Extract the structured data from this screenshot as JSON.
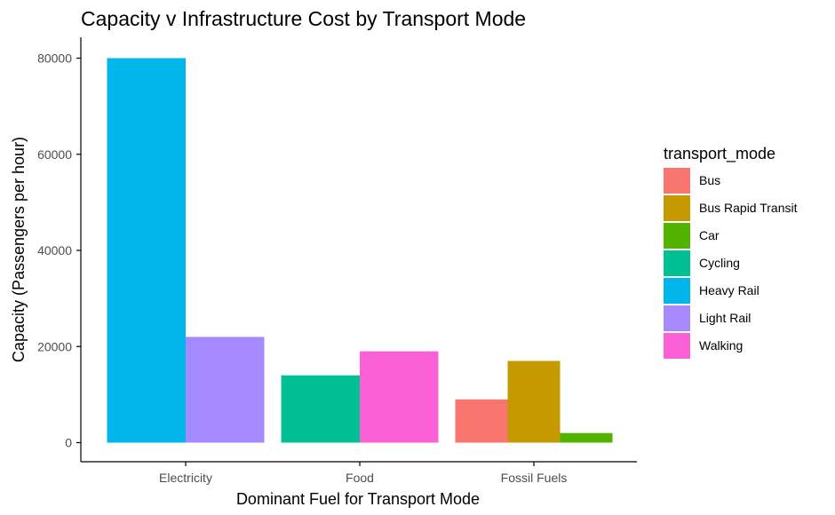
{
  "chart_data": {
    "type": "bar",
    "title": "Capacity v Infrastructure Cost by Transport Mode",
    "xlabel": "Dominant Fuel for Transport Mode",
    "ylabel": "Capacity (Passengers per hour)",
    "ylim": [
      0,
      80000
    ],
    "yticks": [
      "0",
      "20000",
      "40000",
      "60000",
      "80000"
    ],
    "grid": false,
    "categories": [
      "Electricity",
      "Food",
      "Fossil Fuels"
    ],
    "legend": {
      "title": "transport_mode",
      "placement": "right",
      "entries": [
        {
          "name": "Bus",
          "color": "#F8766D"
        },
        {
          "name": "Bus Rapid Transit",
          "color": "#C49A00"
        },
        {
          "name": "Car",
          "color": "#53B400"
        },
        {
          "name": "Cycling",
          "color": "#00C094"
        },
        {
          "name": "Heavy Rail",
          "color": "#00B6EB"
        },
        {
          "name": "Light Rail",
          "color": "#A58AFF"
        },
        {
          "name": "Walking",
          "color": "#FB61D7"
        }
      ]
    },
    "bars": [
      {
        "category": "Electricity",
        "mode": "Heavy Rail",
        "value": 80000
      },
      {
        "category": "Electricity",
        "mode": "Light Rail",
        "value": 22000
      },
      {
        "category": "Food",
        "mode": "Cycling",
        "value": 14000
      },
      {
        "category": "Food",
        "mode": "Walking",
        "value": 19000
      },
      {
        "category": "Fossil Fuels",
        "mode": "Bus",
        "value": 9000
      },
      {
        "category": "Fossil Fuels",
        "mode": "Bus Rapid Transit",
        "value": 17000
      },
      {
        "category": "Fossil Fuels",
        "mode": "Car",
        "value": 2000
      }
    ]
  }
}
